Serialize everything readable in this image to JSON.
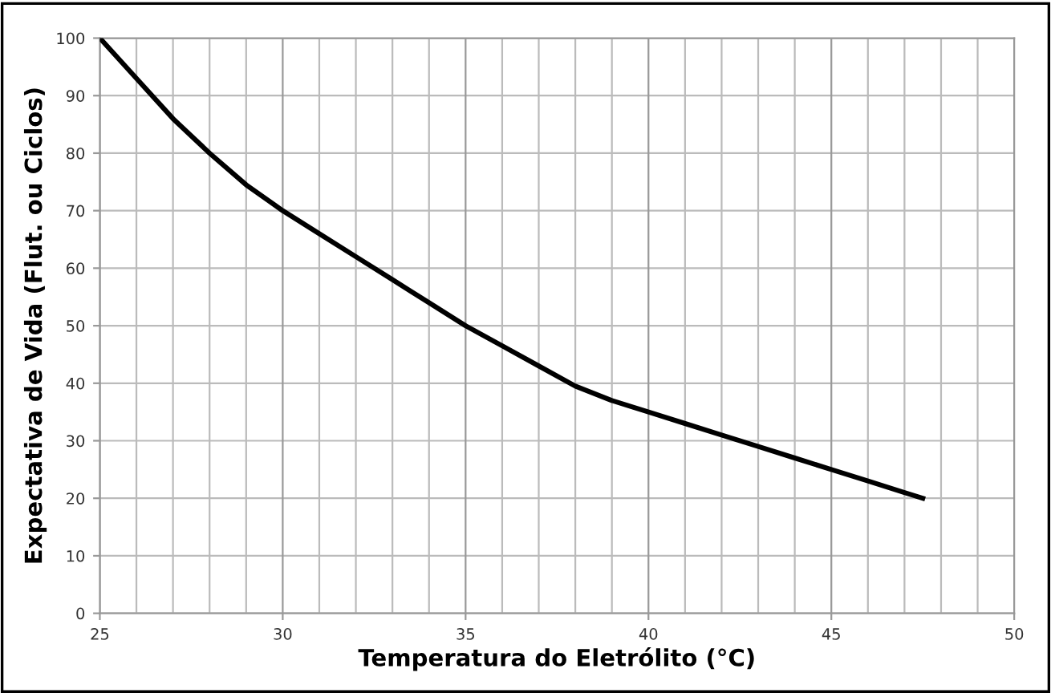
{
  "chart_data": {
    "type": "line",
    "xlabel": "Temperatura do Eletrólito (°C)",
    "ylabel": "Expectativa de Vida (Flut. ou Ciclos)",
    "x": [
      25,
      26,
      27,
      28,
      29,
      30,
      31,
      32,
      33,
      34,
      35,
      36,
      37,
      38,
      39,
      40,
      41,
      42,
      43,
      44,
      45,
      46,
      47,
      47.5
    ],
    "series": [
      {
        "color": "#000000",
        "values": [
          100,
          93,
          86,
          80,
          74.5,
          70,
          66,
          62,
          58,
          54,
          50,
          46.5,
          43,
          39.5,
          37,
          35,
          33,
          31,
          29,
          27,
          25,
          23,
          21,
          20
        ]
      }
    ],
    "xlim": [
      25,
      50
    ],
    "xticks": [
      25,
      30,
      35,
      40,
      45,
      50
    ],
    "ylim": [
      0,
      100
    ],
    "yticks": [
      0,
      10,
      20,
      30,
      40,
      50,
      60,
      70,
      80,
      90,
      100
    ],
    "grid": true,
    "marker": "none",
    "line_style": "solid"
  }
}
